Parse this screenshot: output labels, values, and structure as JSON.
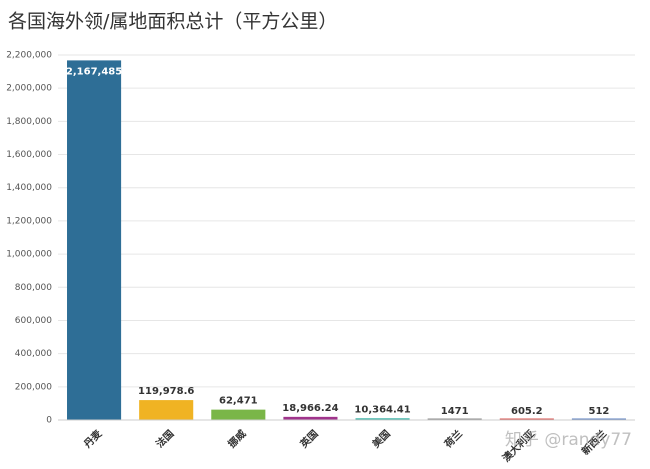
{
  "chart_data": {
    "type": "bar",
    "title": "各国海外领/属地面积总计（平方公里）",
    "categories": [
      "丹麦",
      "法国",
      "挪威",
      "英国",
      "美国",
      "荷兰",
      "澳大利亚",
      "新西兰"
    ],
    "values": [
      2167485,
      119978.6,
      62471,
      18966.24,
      10364.41,
      1471,
      605.2,
      512
    ],
    "value_labels": [
      "2,167,485",
      "119,978.6",
      "62,471",
      "18,966.24",
      "10,364.41",
      "1471",
      "605.2",
      "512"
    ],
    "colors": [
      "#2e6e96",
      "#f0b323",
      "#7ab648",
      "#a0348c",
      "#3bb3a6",
      "#8c8c8c",
      "#d9534f",
      "#5b7fbf"
    ],
    "ylim": [
      0,
      2200000
    ],
    "yticks": [
      0,
      {
        "value": 200000,
        "label": "200,000"
      },
      {
        "value": 400000,
        "label": "400,000"
      },
      {
        "value": 600000,
        "label": "600,000"
      },
      {
        "value": 800000,
        "label": "800,000"
      },
      {
        "value": 1000000,
        "label": "1,000,000"
      },
      {
        "value": 1200000,
        "label": "1,200,000"
      },
      {
        "value": 1400000,
        "label": "1,400,000"
      },
      {
        "value": 1600000,
        "label": "1,600,000"
      },
      {
        "value": 1800000,
        "label": "1,800,000"
      },
      {
        "value": 2000000,
        "label": "2,000,000"
      },
      {
        "value": 2200000,
        "label": "2,200,000"
      }
    ],
    "grid": true,
    "watermark": "知乎 @randy77"
  }
}
